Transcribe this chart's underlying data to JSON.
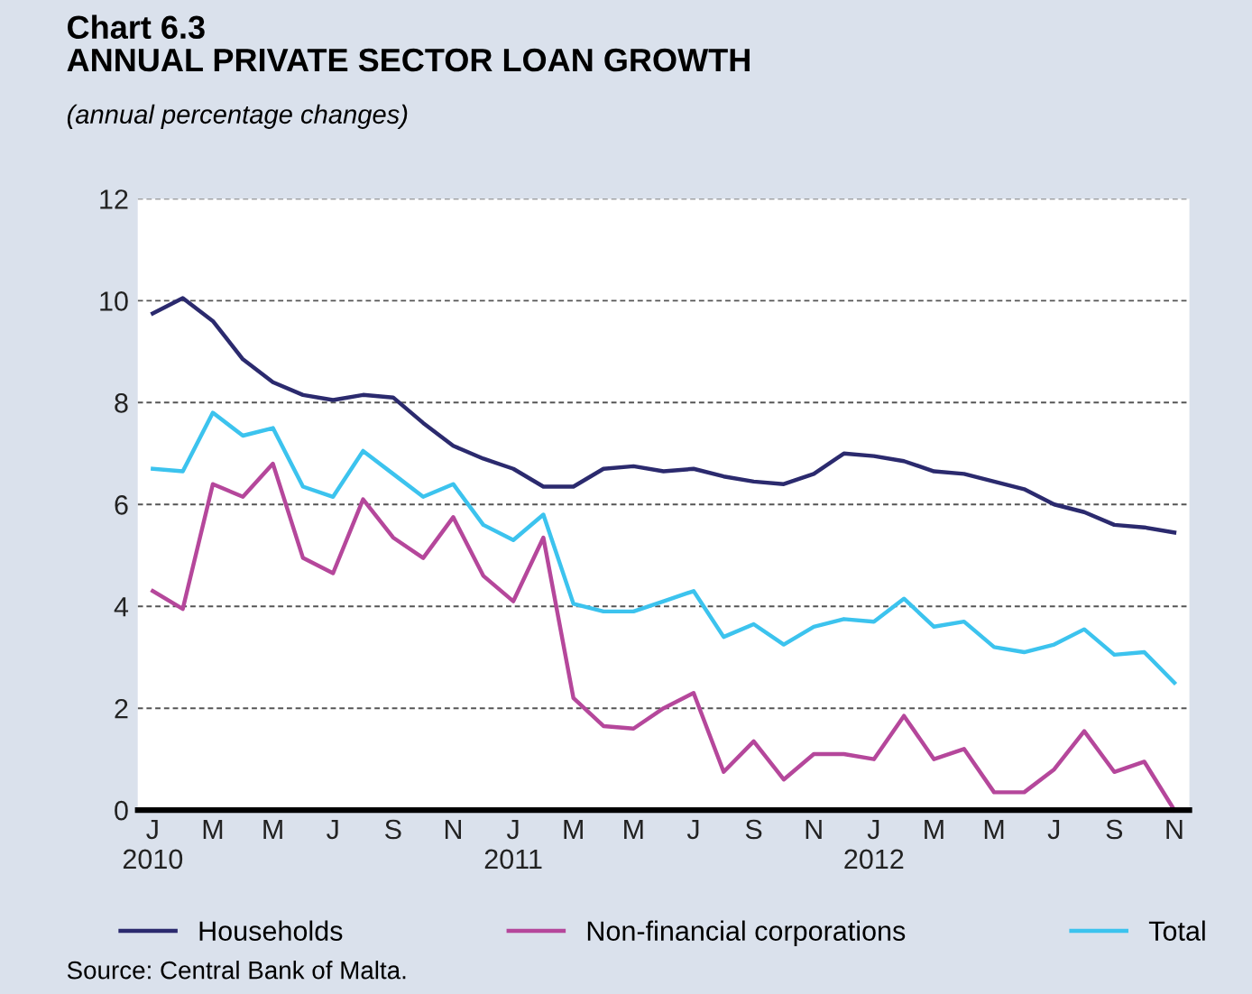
{
  "chart_data": {
    "type": "line",
    "title": "Chart 6.3\nANNUAL PRIVATE SECTOR LOAN GROWTH",
    "subtitle": "(annual percentage changes)",
    "categories": [
      "J\n2010",
      null,
      "M",
      null,
      "M",
      null,
      "J",
      null,
      "S",
      null,
      "N",
      null,
      "J\n2011",
      null,
      "M",
      null,
      "M",
      null,
      "J",
      null,
      "S",
      null,
      "N",
      null,
      "J\n2012",
      null,
      "M",
      null,
      "M",
      null,
      "J",
      null,
      "S",
      null,
      "N"
    ],
    "series": [
      {
        "name": "Households",
        "color": "#2b2a6e",
        "values": [
          9.75,
          10.05,
          9.6,
          8.85,
          8.4,
          8.15,
          8.05,
          8.15,
          8.1,
          7.6,
          7.15,
          6.9,
          6.7,
          6.35,
          6.35,
          6.7,
          6.75,
          6.65,
          6.7,
          6.55,
          6.45,
          6.4,
          6.6,
          7.0,
          6.95,
          6.85,
          6.65,
          6.6,
          6.45,
          6.3,
          6.0,
          5.85,
          5.6,
          5.55,
          5.45
        ]
      },
      {
        "name": "Non-financial corporations",
        "color": "#b5479b",
        "values": [
          4.3,
          3.95,
          6.4,
          6.15,
          6.8,
          4.95,
          4.65,
          6.1,
          5.35,
          4.95,
          5.75,
          4.6,
          4.1,
          5.35,
          2.2,
          1.65,
          1.6,
          2.0,
          2.3,
          0.75,
          1.35,
          0.6,
          1.1,
          1.1,
          1.0,
          1.85,
          1.0,
          1.2,
          0.35,
          0.35,
          0.8,
          1.55,
          0.75,
          0.95,
          0.0
        ]
      },
      {
        "name": "Total",
        "color": "#3cc3ee",
        "values": [
          6.7,
          6.65,
          7.8,
          7.35,
          7.5,
          6.35,
          6.15,
          7.05,
          6.6,
          6.15,
          6.4,
          5.6,
          5.3,
          5.8,
          4.05,
          3.9,
          3.9,
          4.1,
          4.3,
          3.4,
          3.65,
          3.25,
          3.6,
          3.75,
          3.7,
          4.15,
          3.6,
          3.7,
          3.2,
          3.1,
          3.25,
          3.55,
          3.05,
          3.1,
          2.5
        ]
      }
    ],
    "ylim": [
      0,
      12
    ],
    "yticks": [
      0,
      2,
      4,
      6,
      8,
      10,
      12
    ],
    "grid": "y",
    "legend": "bottom",
    "marker": "none",
    "line_style": "solid",
    "annotations": [
      "Source: Central Bank of Malta."
    ]
  }
}
